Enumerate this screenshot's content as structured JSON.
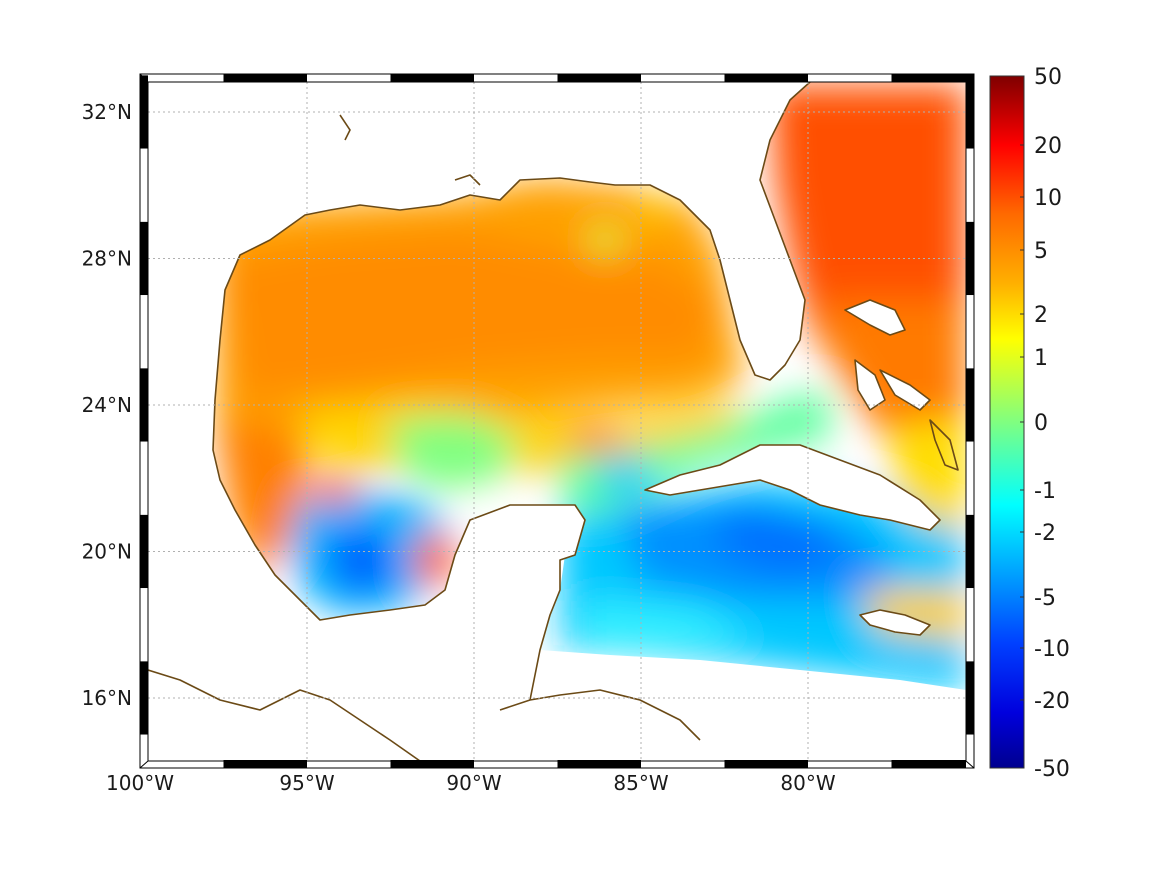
{
  "map": {
    "lon_range": [
      -100,
      -75
    ],
    "lat_range": [
      14,
      33
    ],
    "lon_ticks": [
      {
        "value": -100,
        "label": "100°W"
      },
      {
        "value": -95,
        "label": "95°W"
      },
      {
        "value": -90,
        "label": "90°W"
      },
      {
        "value": -85,
        "label": "85°W"
      },
      {
        "value": -80,
        "label": "80°W"
      }
    ],
    "lat_ticks": [
      {
        "value": 32,
        "label": "32°N"
      },
      {
        "value": 28,
        "label": "28°N"
      },
      {
        "value": 24,
        "label": "24°N"
      },
      {
        "value": 20,
        "label": "20°N"
      },
      {
        "value": 16,
        "label": "16°N"
      }
    ],
    "grid": "dotted",
    "coastline_color": "#6b4a16",
    "frame_style": "alternating black/white border"
  },
  "colorbar": {
    "colormap": "jet",
    "scale": "symmetric-log",
    "position": "right",
    "ticks": [
      "50",
      "20",
      "10",
      "5",
      "2",
      "1",
      "0",
      "-1",
      "-2",
      "-5",
      "-10",
      "-20",
      "-50"
    ]
  },
  "field_summary": {
    "gulf_of_mexico_north_and_west": "positive, ~2 to 5",
    "atlantic_east_of_florida": "positive, ~5 to 10",
    "bay_of_campeche": "negative, ~-2 to -5",
    "caribbean_south_of_cuba": "negative, ~-2 to -5",
    "yucatan_channel_and_florida_straits": "near 0 to -1"
  }
}
